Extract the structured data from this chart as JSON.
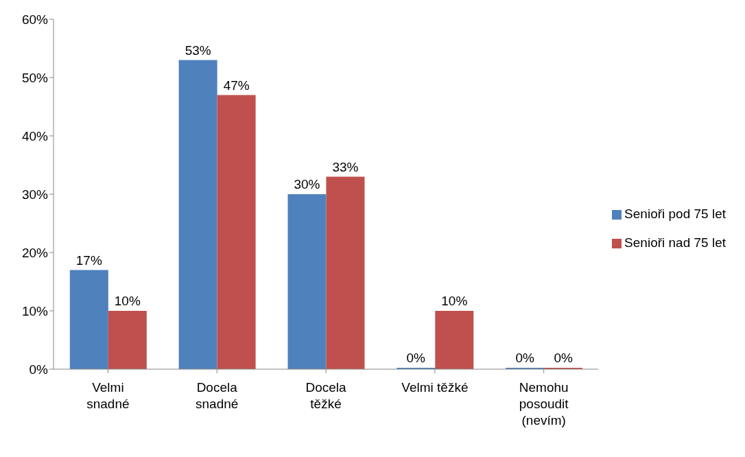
{
  "chart_data": {
    "type": "bar",
    "categories": [
      "Velmi snadné",
      "Docela snadné",
      "Docela těžké",
      "Velmi těžké",
      "Nemohu posoudit (nevím)"
    ],
    "series": [
      {
        "name": "Senioři pod 75 let",
        "color": "#4f81bd",
        "values": [
          17,
          53,
          30,
          0,
          0
        ],
        "value_labels": [
          "17%",
          "53%",
          "30%",
          "0%",
          "0%"
        ]
      },
      {
        "name": "Senioři nad 75 let",
        "color": "#c0504d",
        "values": [
          10,
          47,
          33,
          10,
          0
        ],
        "value_labels": [
          "10%",
          "47%",
          "33%",
          "10%",
          "0%"
        ]
      }
    ],
    "ylim": [
      0,
      60
    ],
    "yticks": [
      {
        "value": 0,
        "label": "0%"
      },
      {
        "value": 10,
        "label": "10%"
      },
      {
        "value": 20,
        "label": "20%"
      },
      {
        "value": 30,
        "label": "30%"
      },
      {
        "value": 40,
        "label": "40%"
      },
      {
        "value": 50,
        "label": "50%"
      },
      {
        "value": 60,
        "label": "60%"
      }
    ],
    "grid": false,
    "legend": "right"
  }
}
